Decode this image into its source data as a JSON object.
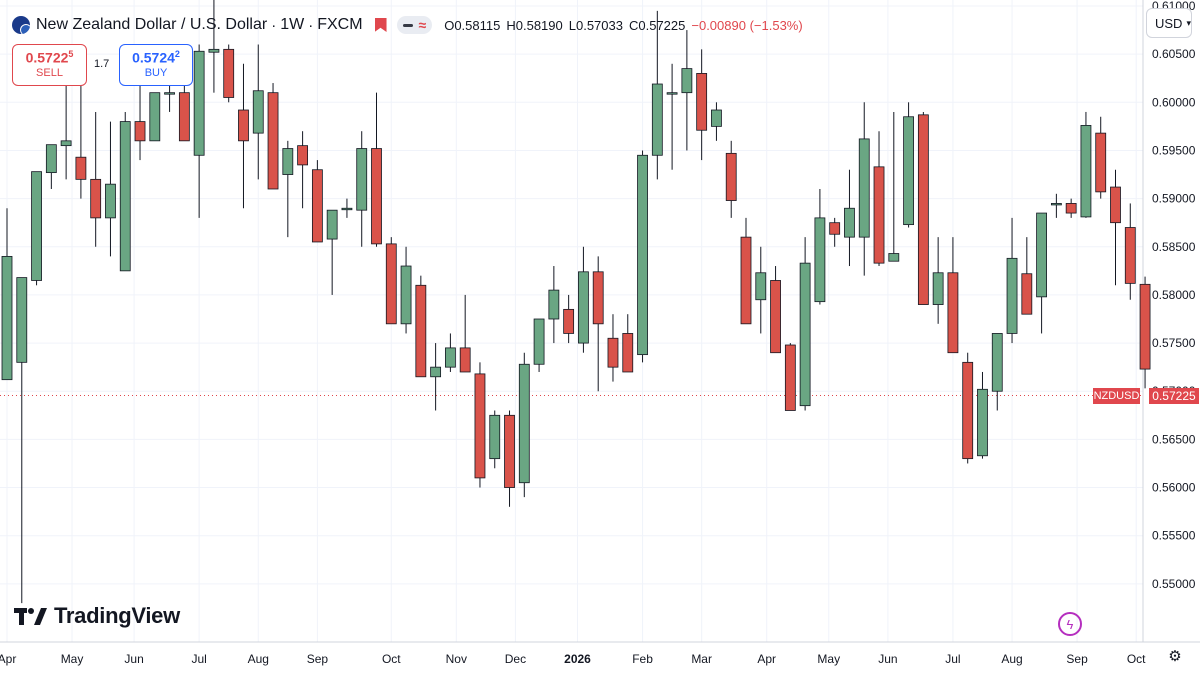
{
  "header": {
    "title": "New Zealand Dollar / U.S. Dollar",
    "interval": "1W",
    "source": "FXCM",
    "sep": "·",
    "open": "O0.58115",
    "high": "H0.58190",
    "low": "L0.57033",
    "close": "C0.57225",
    "change": "−0.00890 (−1.53%)"
  },
  "trade": {
    "sell_price": "0.5722",
    "sell_sup": "5",
    "sell_label": "SELL",
    "spread": "1.7",
    "buy_price": "0.5724",
    "buy_sup": "2",
    "buy_label": "BUY"
  },
  "currency": "USD",
  "last_price": {
    "symbol": "NZDUSD",
    "value": "0.57225"
  },
  "logo": "TradingView",
  "icons": [
    "nz-flag-icon",
    "red-flag-icon",
    "compare-icon",
    "chevron-down-icon",
    "tradingview-logo-icon",
    "flash-icon",
    "settings-icon"
  ],
  "colors": {
    "up": "#6aa683",
    "down": "#d9534a",
    "accent": "#2962ff",
    "grid": "#f0f3fa"
  },
  "chart_data": {
    "type": "candlestick",
    "symbol": "NZDUSD",
    "interval": "1W",
    "ylim": [
      0.545,
      0.61
    ],
    "y_ticks": [
      "0.55000",
      "0.55500",
      "0.56000",
      "0.56500",
      "0.57000",
      "0.57500",
      "0.58000",
      "0.58500",
      "0.59000",
      "0.59500",
      "0.60000",
      "0.60500",
      "0.61000"
    ],
    "x_ticks": [
      "Apr",
      "May",
      "Jun",
      "Jul",
      "Aug",
      "Sep",
      "Oct",
      "Nov",
      "Dec",
      "2026",
      "Feb",
      "Mar",
      "Apr",
      "May",
      "Jun",
      "Jul",
      "Aug",
      "Sep",
      "Oct"
    ],
    "x_tick_index": [
      0,
      4.4,
      8.6,
      13,
      17,
      21,
      26,
      30.4,
      34.4,
      38.6,
      43,
      47,
      51.4,
      55.6,
      59.6,
      64,
      68,
      72.4,
      76.4
    ],
    "bold_ticks": [
      "2026"
    ],
    "candles": [
      [
        0.5712,
        0.575,
        0.589,
        0.584
      ],
      [
        0.573,
        0.548,
        0.56,
        0.5818
      ],
      [
        0.5815,
        0.581,
        0.5885,
        0.5928
      ],
      [
        0.5927,
        0.591,
        0.595,
        0.5956
      ],
      [
        0.5955,
        0.592,
        0.603,
        0.596
      ],
      [
        0.5943,
        0.59,
        0.603,
        0.592
      ],
      [
        0.592,
        0.585,
        0.599,
        0.588
      ],
      [
        0.588,
        0.584,
        0.598,
        0.5915
      ],
      [
        0.5825,
        0.585,
        0.599,
        0.598
      ],
      [
        0.598,
        0.594,
        0.602,
        0.596
      ],
      [
        0.596,
        0.596,
        0.601,
        0.601
      ],
      [
        0.601,
        0.599,
        0.606,
        0.601
      ],
      [
        0.601,
        0.6,
        0.602,
        0.596
      ],
      [
        0.5945,
        0.588,
        0.606,
        0.6053
      ],
      [
        0.6052,
        0.601,
        0.611,
        0.6055
      ],
      [
        0.6055,
        0.6,
        0.606,
        0.6005
      ],
      [
        0.5992,
        0.589,
        0.604,
        0.596
      ],
      [
        0.5968,
        0.592,
        0.606,
        0.6012
      ],
      [
        0.601,
        0.591,
        0.602,
        0.591
      ],
      [
        0.5925,
        0.586,
        0.596,
        0.5952
      ],
      [
        0.5955,
        0.589,
        0.597,
        0.5935
      ],
      [
        0.593,
        0.586,
        0.594,
        0.5855
      ],
      [
        0.5858,
        0.58,
        0.588,
        0.5888
      ],
      [
        0.589,
        0.588,
        0.59,
        0.589
      ],
      [
        0.5888,
        0.585,
        0.597,
        0.5952
      ],
      [
        0.5952,
        0.585,
        0.601,
        0.5853
      ],
      [
        0.5853,
        0.581,
        0.586,
        0.577
      ],
      [
        0.577,
        0.576,
        0.585,
        0.583
      ],
      [
        0.581,
        0.572,
        0.582,
        0.5715
      ],
      [
        0.5715,
        0.568,
        0.575,
        0.5725
      ],
      [
        0.5725,
        0.572,
        0.576,
        0.5745
      ],
      [
        0.5745,
        0.572,
        0.58,
        0.572
      ],
      [
        0.5718,
        0.56,
        0.573,
        0.561
      ],
      [
        0.563,
        0.562,
        0.568,
        0.5675
      ],
      [
        0.5675,
        0.558,
        0.568,
        0.56
      ],
      [
        0.5605,
        0.559,
        0.574,
        0.5728
      ],
      [
        0.5728,
        0.572,
        0.576,
        0.5775
      ],
      [
        0.5775,
        0.575,
        0.583,
        0.5805
      ],
      [
        0.5785,
        0.575,
        0.58,
        0.576
      ],
      [
        0.575,
        0.574,
        0.585,
        0.5824
      ],
      [
        0.5824,
        0.57,
        0.584,
        0.577
      ],
      [
        0.5755,
        0.571,
        0.578,
        0.5725
      ],
      [
        0.576,
        0.572,
        0.578,
        0.572
      ],
      [
        0.5738,
        0.573,
        0.595,
        0.5945
      ],
      [
        0.5945,
        0.592,
        0.6095,
        0.6019
      ],
      [
        0.601,
        0.593,
        0.604,
        0.601
      ],
      [
        0.601,
        0.595,
        0.6075,
        0.6035
      ],
      [
        0.603,
        0.594,
        0.6055,
        0.5971
      ],
      [
        0.5975,
        0.596,
        0.6,
        0.5992
      ],
      [
        0.5947,
        0.588,
        0.596,
        0.5898
      ],
      [
        0.586,
        0.577,
        0.588,
        0.577
      ],
      [
        0.5795,
        0.576,
        0.585,
        0.5823
      ],
      [
        0.5815,
        0.574,
        0.583,
        0.574
      ],
      [
        0.5748,
        0.568,
        0.575,
        0.568
      ],
      [
        0.5685,
        0.568,
        0.586,
        0.5833
      ],
      [
        0.5793,
        0.579,
        0.591,
        0.588
      ],
      [
        0.5875,
        0.585,
        0.588,
        0.5863
      ],
      [
        0.586,
        0.583,
        0.593,
        0.589
      ],
      [
        0.586,
        0.582,
        0.6,
        0.5962
      ],
      [
        0.5933,
        0.583,
        0.597,
        0.5833
      ],
      [
        0.5835,
        0.584,
        0.599,
        0.5843
      ],
      [
        0.5873,
        0.587,
        0.6,
        0.5985
      ],
      [
        0.5987,
        0.579,
        0.599,
        0.579
      ],
      [
        0.579,
        0.577,
        0.586,
        0.5823
      ],
      [
        0.5823,
        0.574,
        0.586,
        0.574
      ],
      [
        0.573,
        0.5625,
        0.574,
        0.563
      ],
      [
        0.5633,
        0.563,
        0.572,
        0.5702
      ],
      [
        0.57,
        0.568,
        0.576,
        0.576
      ],
      [
        0.576,
        0.575,
        0.588,
        0.5838
      ],
      [
        0.5822,
        0.578,
        0.586,
        0.578
      ],
      [
        0.5798,
        0.576,
        0.5885,
        0.5885
      ],
      [
        0.5895,
        0.588,
        0.5905,
        0.5895
      ],
      [
        0.5895,
        0.588,
        0.59,
        0.5885
      ],
      [
        0.5881,
        0.588,
        0.599,
        0.5976
      ],
      [
        0.5968,
        0.59,
        0.5985,
        0.5907
      ],
      [
        0.5912,
        0.581,
        0.593,
        0.5875
      ],
      [
        0.587,
        0.5795,
        0.5895,
        0.5812
      ],
      [
        0.5811,
        0.5703,
        0.5819,
        0.5723
      ]
    ]
  }
}
